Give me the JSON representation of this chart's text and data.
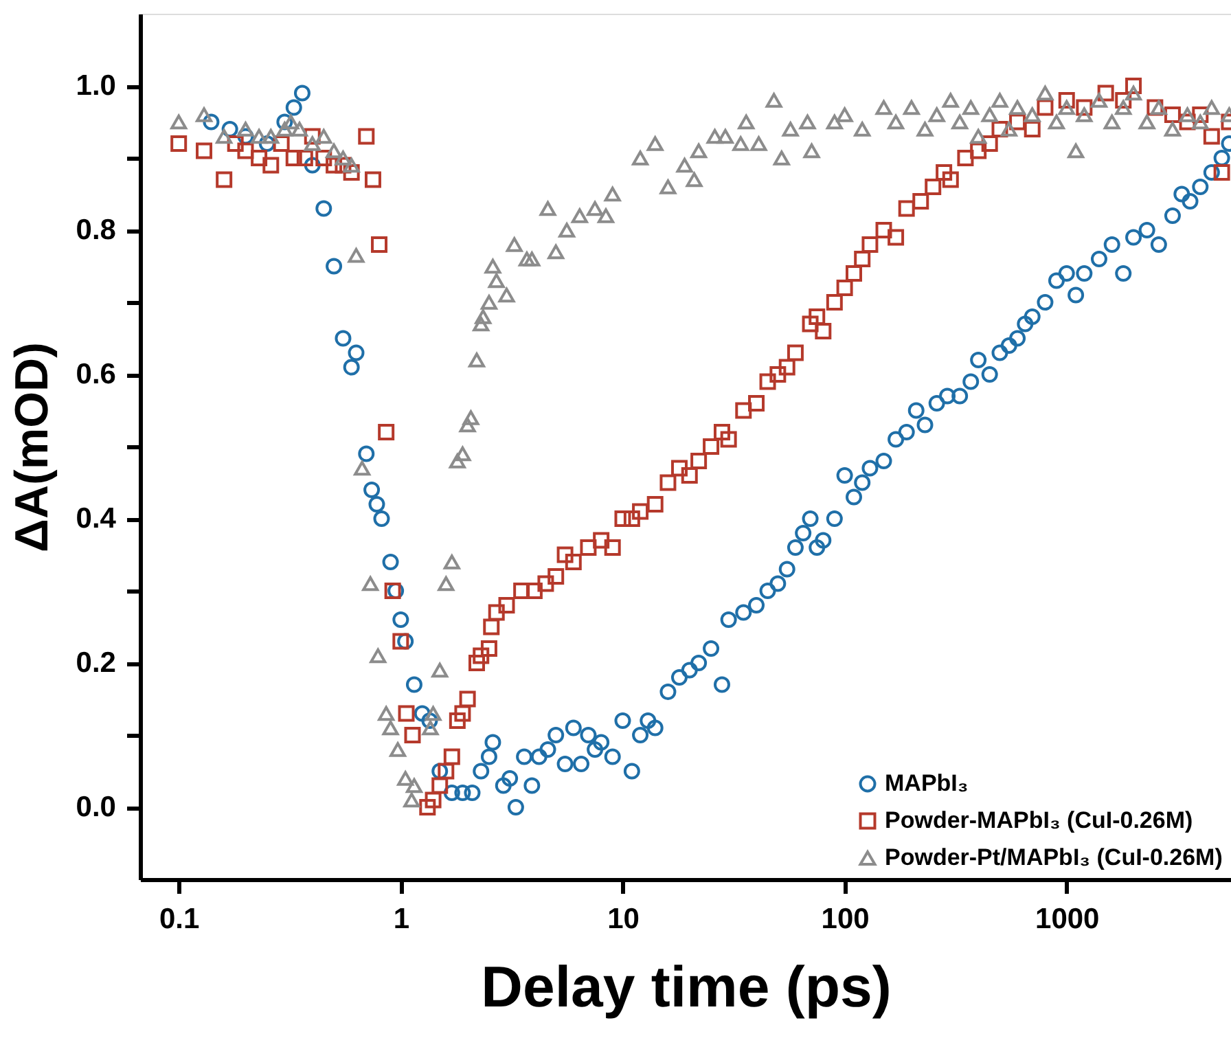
{
  "chart_data": {
    "type": "scatter",
    "xlabel": "Delay time (ps)",
    "ylabel": "ΔA(mOD)",
    "log": "x",
    "grid": false,
    "legend": "bottom right",
    "xlim": [
      0.067,
      5500
    ],
    "xticks": [
      0.1,
      1,
      10,
      100,
      1000
    ],
    "ylim": [
      -0.1,
      1.1
    ],
    "yticks": [
      {
        "value": 0,
        "label": "0.0"
      },
      {
        "value": 0.1,
        "label": null
      },
      {
        "value": 0.2,
        "label": "0.2"
      },
      {
        "value": 0.3,
        "label": null
      },
      {
        "value": 0.4,
        "label": "0.4"
      },
      {
        "value": 0.5,
        "label": null
      },
      {
        "value": 0.6,
        "label": "0.6"
      },
      {
        "value": 0.7,
        "label": null
      },
      {
        "value": 0.8,
        "label": "0.8"
      },
      {
        "value": 0.9,
        "label": null
      },
      {
        "value": 1.0,
        "label": "1.0"
      }
    ],
    "series": [
      {
        "name": "MAPbI₃",
        "color": "#1f6fa8",
        "marker": "circle",
        "x": [
          0.14,
          0.17,
          0.2,
          0.25,
          0.3,
          0.33,
          0.36,
          0.4,
          0.45,
          0.5,
          0.55,
          0.6,
          0.63,
          0.7,
          0.74,
          0.78,
          0.82,
          0.9,
          0.95,
          1.0,
          1.05,
          1.15,
          1.25,
          1.35,
          1.5,
          1.7,
          1.9,
          2.1,
          2.3,
          2.5,
          2.6,
          2.9,
          3.1,
          3.3,
          3.6,
          3.9,
          4.2,
          4.6,
          5,
          5.5,
          6,
          6.5,
          7,
          7.5,
          8,
          9,
          10,
          11,
          12,
          13,
          14,
          16,
          18,
          20,
          22,
          25,
          28,
          30,
          35,
          40,
          45,
          50,
          55,
          60,
          65,
          70,
          75,
          80,
          90,
          100,
          110,
          120,
          130,
          150,
          170,
          190,
          210,
          230,
          260,
          290,
          330,
          370,
          400,
          450,
          500,
          550,
          600,
          650,
          700,
          800,
          900,
          1000,
          1100,
          1200,
          1400,
          1600,
          1800,
          2000,
          2300,
          2600,
          3000,
          3300,
          3600,
          4000,
          4500,
          5000,
          5400
        ],
        "values": [
          0.95,
          0.94,
          0.93,
          0.92,
          0.95,
          0.97,
          0.99,
          0.89,
          0.83,
          0.75,
          0.65,
          0.61,
          0.63,
          0.49,
          0.44,
          0.42,
          0.4,
          0.34,
          0.3,
          0.26,
          0.23,
          0.17,
          0.13,
          0.12,
          0.05,
          0.02,
          0.02,
          0.02,
          0.05,
          0.07,
          0.09,
          0.03,
          0.04,
          0.0,
          0.07,
          0.03,
          0.07,
          0.08,
          0.1,
          0.06,
          0.11,
          0.06,
          0.1,
          0.08,
          0.09,
          0.07,
          0.12,
          0.05,
          0.1,
          0.12,
          0.11,
          0.16,
          0.18,
          0.19,
          0.2,
          0.22,
          0.17,
          0.26,
          0.27,
          0.28,
          0.3,
          0.31,
          0.33,
          0.36,
          0.38,
          0.4,
          0.36,
          0.37,
          0.4,
          0.46,
          0.43,
          0.45,
          0.47,
          0.48,
          0.51,
          0.52,
          0.55,
          0.53,
          0.56,
          0.57,
          0.57,
          0.59,
          0.62,
          0.6,
          0.63,
          0.64,
          0.65,
          0.67,
          0.68,
          0.7,
          0.73,
          0.74,
          0.71,
          0.74,
          0.76,
          0.78,
          0.74,
          0.79,
          0.8,
          0.78,
          0.82,
          0.85,
          0.84,
          0.86,
          0.88,
          0.9,
          0.92
        ]
      },
      {
        "name": "Powder-MAPbI₃ (CuI-0.26M)",
        "color": "#b5392b",
        "marker": "square",
        "x": [
          0.1,
          0.13,
          0.16,
          0.18,
          0.2,
          0.23,
          0.26,
          0.29,
          0.33,
          0.37,
          0.4,
          0.45,
          0.5,
          0.55,
          0.6,
          0.7,
          0.75,
          0.8,
          0.86,
          0.92,
          1.0,
          1.06,
          1.13,
          1.32,
          1.4,
          1.5,
          1.6,
          1.7,
          1.8,
          1.9,
          2.0,
          2.2,
          2.3,
          2.5,
          2.56,
          2.7,
          3,
          3.5,
          4,
          4.5,
          5,
          5.5,
          6,
          7,
          8,
          9,
          10,
          11,
          12,
          14,
          16,
          18,
          20,
          22,
          25,
          28,
          30,
          35,
          40,
          45,
          50,
          55,
          60,
          70,
          75,
          80,
          90,
          100,
          110,
          120,
          130,
          150,
          170,
          190,
          220,
          250,
          280,
          300,
          350,
          400,
          450,
          500,
          600,
          700,
          800,
          1000,
          1200,
          1500,
          1800,
          2000,
          2500,
          3000,
          3500,
          4000,
          4500,
          5000,
          5400
        ],
        "values": [
          0.92,
          0.91,
          0.87,
          0.92,
          0.91,
          0.9,
          0.89,
          0.92,
          0.9,
          0.9,
          0.93,
          0.9,
          0.89,
          0.89,
          0.88,
          0.93,
          0.87,
          0.78,
          0.52,
          0.3,
          0.23,
          0.13,
          0.1,
          0.0,
          0.01,
          0.03,
          0.05,
          0.07,
          0.12,
          0.13,
          0.15,
          0.2,
          0.21,
          0.22,
          0.25,
          0.27,
          0.28,
          0.3,
          0.3,
          0.31,
          0.32,
          0.35,
          0.34,
          0.36,
          0.37,
          0.36,
          0.4,
          0.4,
          0.41,
          0.42,
          0.45,
          0.47,
          0.46,
          0.48,
          0.5,
          0.52,
          0.51,
          0.55,
          0.56,
          0.59,
          0.6,
          0.61,
          0.63,
          0.67,
          0.68,
          0.66,
          0.7,
          0.72,
          0.74,
          0.76,
          0.78,
          0.8,
          0.79,
          0.83,
          0.84,
          0.86,
          0.88,
          0.87,
          0.9,
          0.91,
          0.92,
          0.94,
          0.95,
          0.94,
          0.97,
          0.98,
          0.97,
          0.99,
          0.98,
          1.0,
          0.97,
          0.96,
          0.95,
          0.96,
          0.93,
          0.88,
          0.95
        ]
      },
      {
        "name": "Powder-Pt/MAPbI₃ (CuI-0.26M)",
        "color": "#8c8c8c",
        "marker": "triangle",
        "x": [
          0.1,
          0.13,
          0.16,
          0.2,
          0.23,
          0.26,
          0.3,
          0.32,
          0.35,
          0.4,
          0.45,
          0.5,
          0.55,
          0.6,
          0.63,
          0.67,
          0.73,
          0.79,
          0.86,
          0.9,
          0.97,
          1.05,
          1.12,
          1.15,
          1.36,
          1.4,
          1.5,
          1.6,
          1.7,
          1.8,
          1.9,
          2.0,
          2.07,
          2.2,
          2.3,
          2.35,
          2.5,
          2.6,
          2.7,
          3.0,
          3.25,
          3.7,
          3.9,
          4.6,
          5,
          5.6,
          6.4,
          7.5,
          8.4,
          9,
          12,
          14,
          16,
          19,
          21,
          22,
          26,
          29,
          34,
          36,
          41,
          48,
          52,
          57,
          68,
          71,
          90,
          100,
          120,
          150,
          170,
          200,
          230,
          260,
          300,
          330,
          370,
          400,
          450,
          500,
          550,
          600,
          700,
          800,
          900,
          1000,
          1100,
          1200,
          1400,
          1600,
          1800,
          2000,
          2300,
          2600,
          3000,
          3500,
          4000,
          4500,
          5400
        ],
        "values": [
          0.95,
          0.96,
          0.93,
          0.94,
          0.93,
          0.93,
          0.94,
          0.95,
          0.94,
          0.92,
          0.93,
          0.91,
          0.9,
          0.89,
          0.765,
          0.47,
          0.31,
          0.21,
          0.13,
          0.11,
          0.08,
          0.04,
          0.01,
          0.03,
          0.11,
          0.13,
          0.19,
          0.31,
          0.34,
          0.48,
          0.49,
          0.53,
          0.54,
          0.62,
          0.67,
          0.68,
          0.7,
          0.75,
          0.73,
          0.71,
          0.78,
          0.76,
          0.76,
          0.83,
          0.77,
          0.8,
          0.82,
          0.83,
          0.82,
          0.85,
          0.9,
          0.92,
          0.86,
          0.89,
          0.87,
          0.91,
          0.93,
          0.93,
          0.92,
          0.95,
          0.92,
          0.98,
          0.9,
          0.94,
          0.95,
          0.91,
          0.95,
          0.96,
          0.94,
          0.97,
          0.95,
          0.97,
          0.94,
          0.96,
          0.98,
          0.95,
          0.97,
          0.93,
          0.96,
          0.98,
          0.94,
          0.97,
          0.96,
          0.99,
          0.95,
          0.97,
          0.91,
          0.96,
          0.98,
          0.95,
          0.97,
          0.99,
          0.95,
          0.97,
          0.94,
          0.96,
          0.95,
          0.97,
          0.96
        ]
      }
    ]
  }
}
